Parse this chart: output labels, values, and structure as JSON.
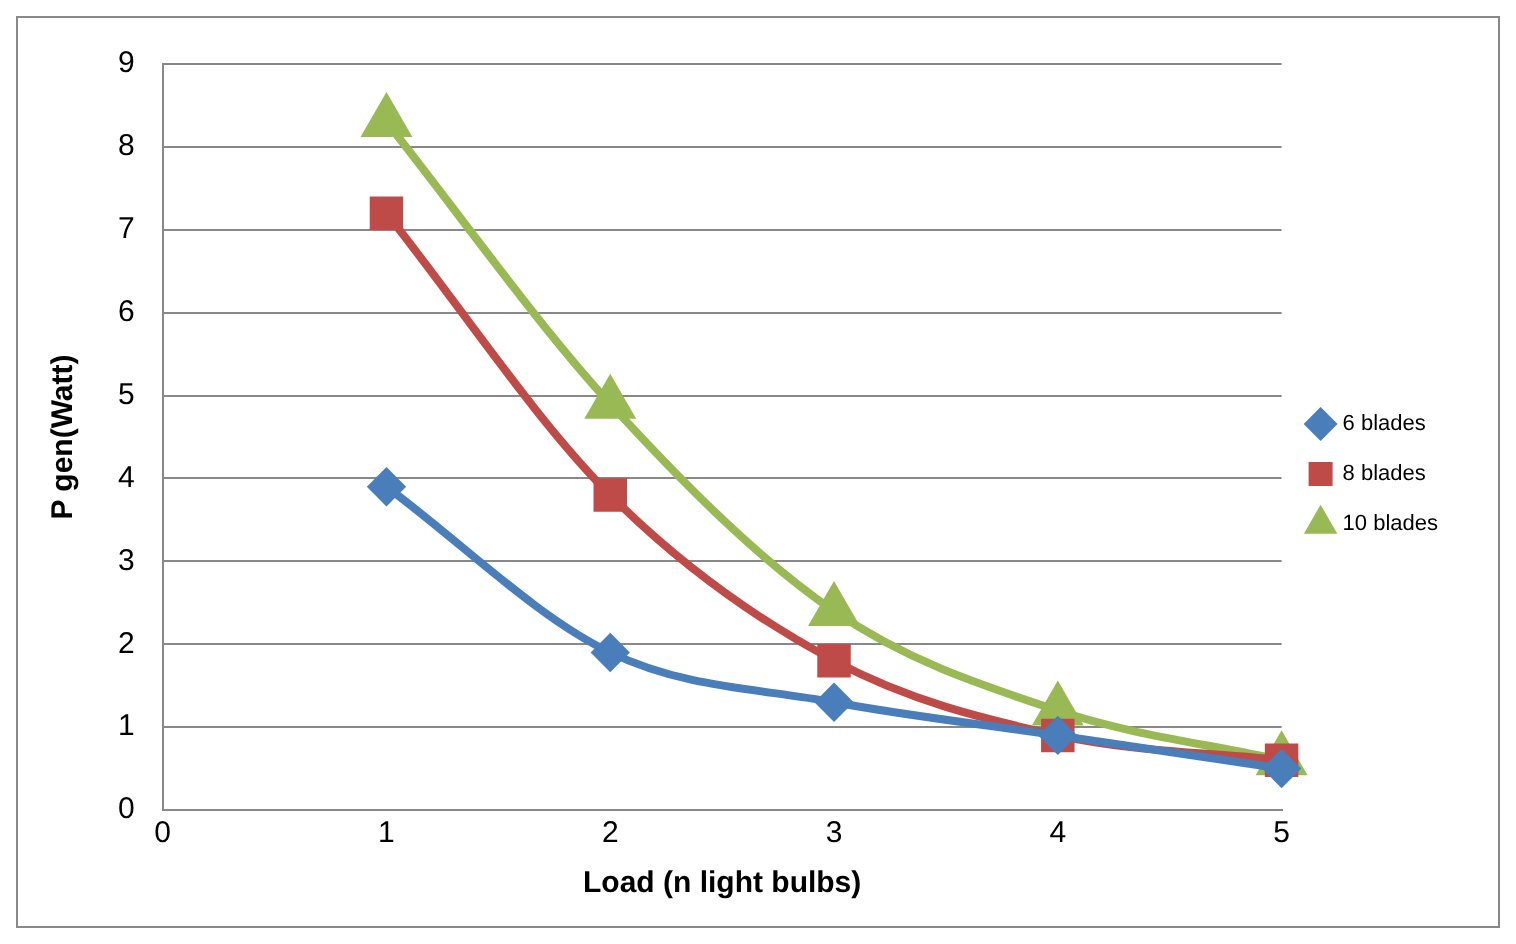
{
  "chart_data": {
    "type": "line",
    "xlabel": "Load (n light bulbs)",
    "ylabel": "P gen(Watt)",
    "x": [
      1,
      2,
      3,
      4,
      5
    ],
    "series": [
      {
        "name": "6 blades",
        "color": "#4a7ebb",
        "marker": "diamond",
        "values": [
          3.9,
          1.9,
          1.3,
          0.9,
          0.5
        ]
      },
      {
        "name": "8 blades",
        "color": "#be4b48",
        "marker": "square",
        "values": [
          7.2,
          3.8,
          1.8,
          0.9,
          0.6
        ]
      },
      {
        "name": "10 blades",
        "color": "#98b954",
        "marker": "triangle",
        "values": [
          8.3,
          4.9,
          2.4,
          1.2,
          0.6
        ]
      }
    ],
    "xlim": [
      0,
      5
    ],
    "xticks": [
      0,
      1,
      2,
      3,
      4,
      5
    ],
    "ylim": [
      0,
      9
    ],
    "yticks": [
      0,
      1,
      2,
      3,
      4,
      5,
      6,
      7,
      8,
      9
    ],
    "grid": "y",
    "legend": "right"
  }
}
